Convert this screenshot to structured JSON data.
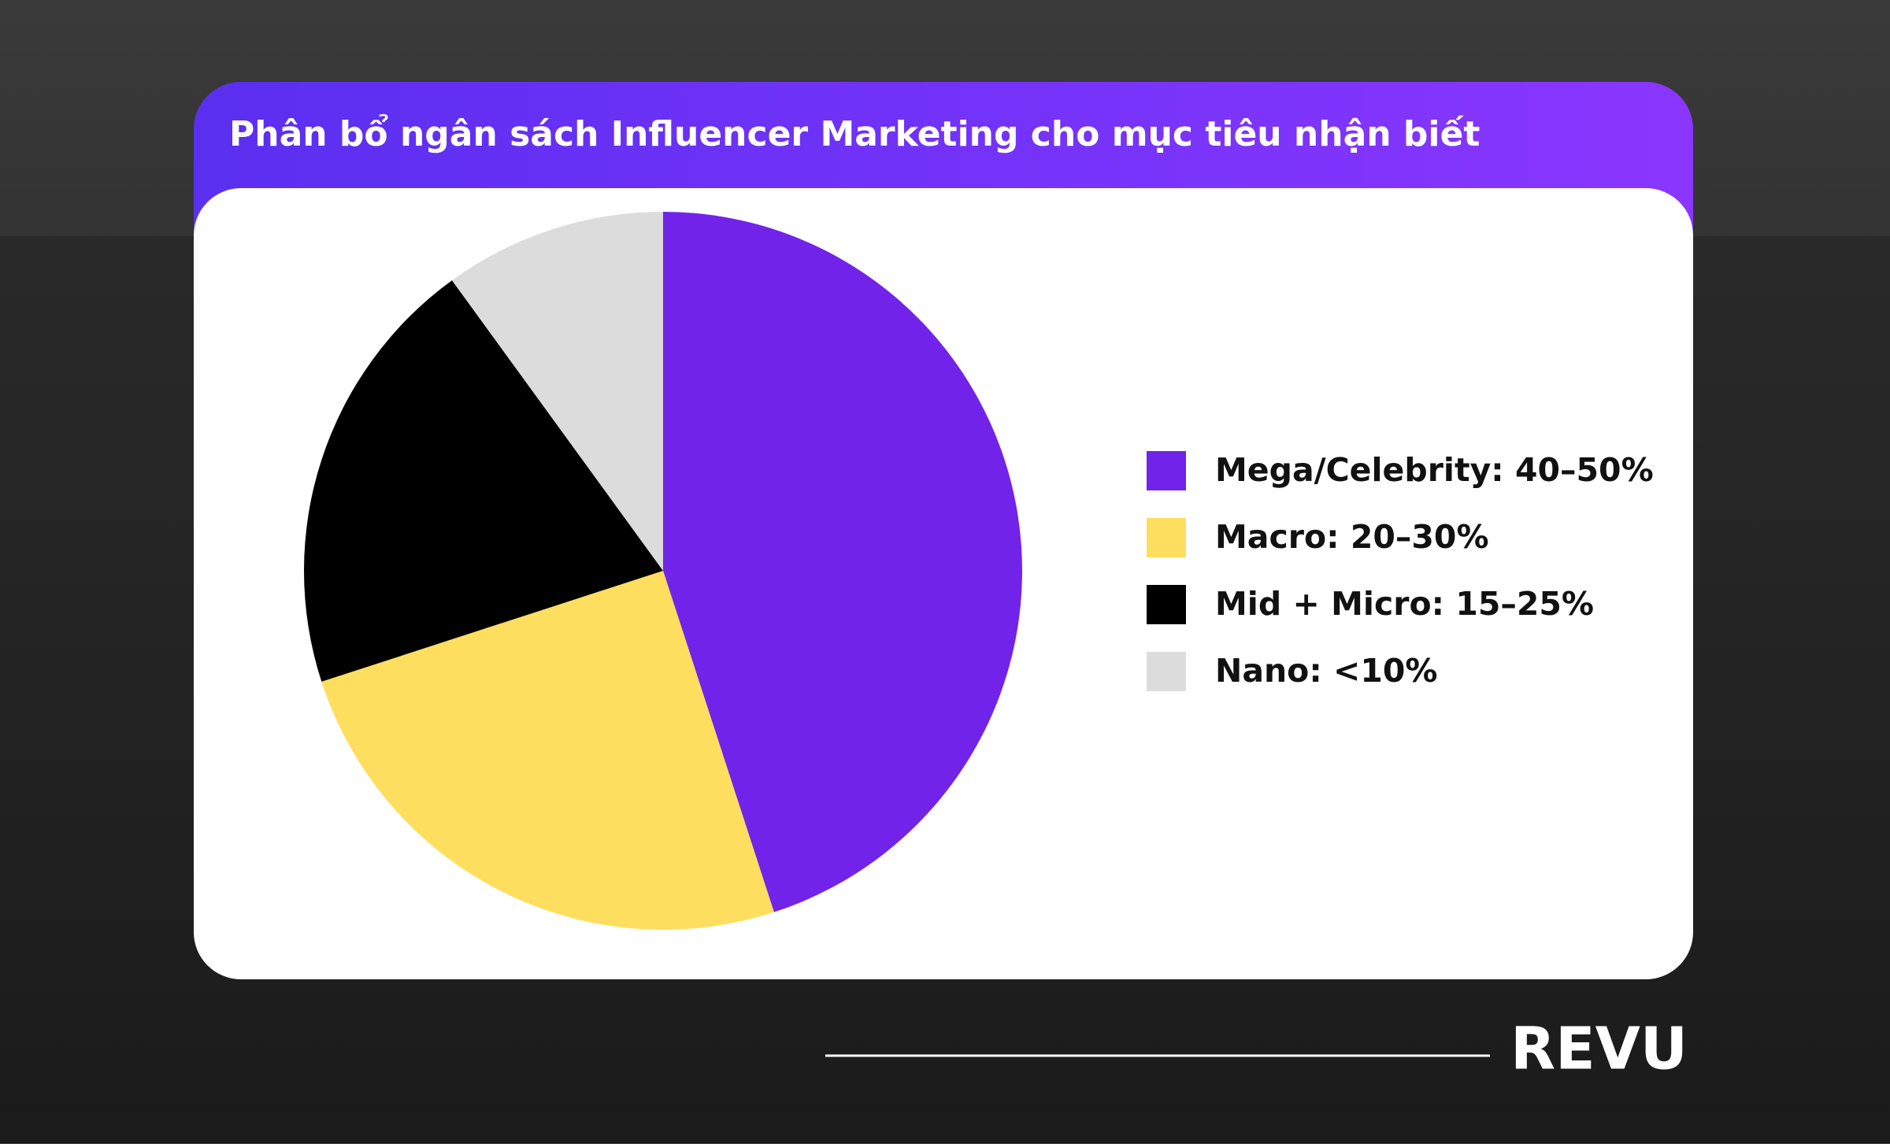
{
  "chart_data": {
    "type": "pie",
    "title": "Phân bổ ngân sách Influencer Marketing cho mục tiêu nhận biết",
    "categories": [
      "Mega/Celebrity: 40–50%",
      "Macro: 20–30%",
      "Mid + Micro: 15–25%",
      "Nano: <10%"
    ],
    "values": [
      45,
      25,
      20,
      10
    ],
    "colors": [
      "#7223ea",
      "#fede5f",
      "#000000",
      "#dcdcdc"
    ],
    "legend": "right"
  },
  "brand": "REVU"
}
